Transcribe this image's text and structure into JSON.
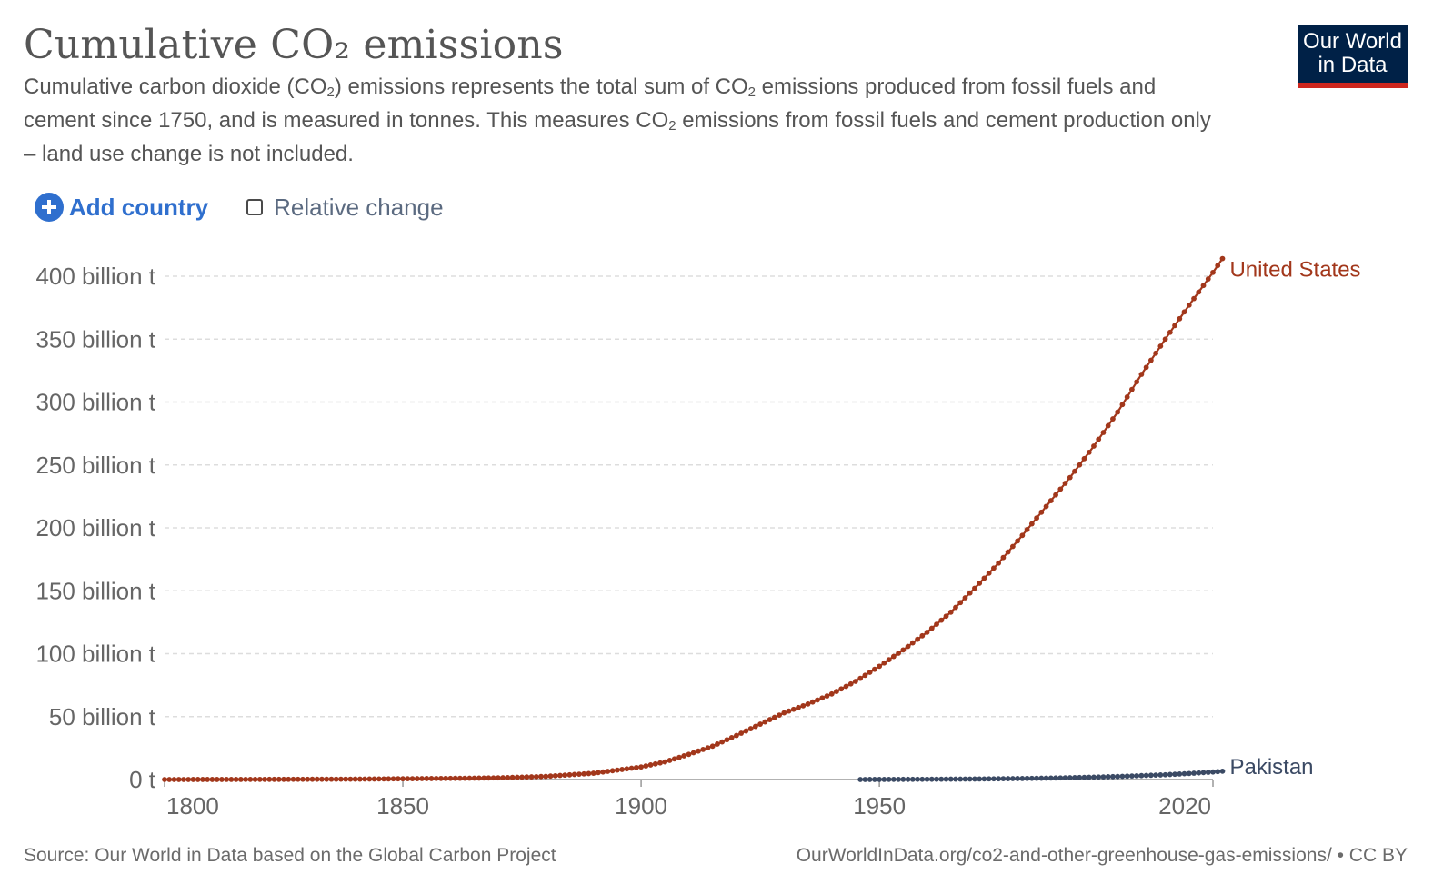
{
  "header": {
    "title": "Cumulative CO₂ emissions",
    "subtitle_parts": [
      "Cumulative carbon dioxide (CO",
      "2",
      ") emissions represents the total sum of CO",
      "2",
      " emissions produced from fossil fuels and cement since 1750, and is measured in tonnes. This measures CO",
      "2",
      " emissions from fossil fuels and cement production only – land use change is not included."
    ]
  },
  "logo": {
    "line1": "Our World",
    "line2": "in Data",
    "bg_color": "#002147",
    "accent_color": "#ce261e"
  },
  "controls": {
    "add_country_label": "Add country",
    "add_icon": "plus-circle-icon",
    "relative_change_label": "Relative change",
    "relative_change_checked": false
  },
  "chart_data": {
    "type": "line",
    "title": "Cumulative CO₂ emissions",
    "xlim": [
      1800,
      2020
    ],
    "ylim": [
      0,
      420
    ],
    "y_unit_note": "values in billion tonnes",
    "y_ticks": [
      {
        "value": 0,
        "label": "0 t"
      },
      {
        "value": 50,
        "label": "50 billion t"
      },
      {
        "value": 100,
        "label": "100 billion t"
      },
      {
        "value": 150,
        "label": "150 billion t"
      },
      {
        "value": 200,
        "label": "200 billion t"
      },
      {
        "value": 250,
        "label": "250 billion t"
      },
      {
        "value": 300,
        "label": "300 billion t"
      },
      {
        "value": 350,
        "label": "350 billion t"
      },
      {
        "value": 400,
        "label": "400 billion t"
      }
    ],
    "x_ticks": [
      {
        "value": 1800,
        "label": "1800"
      },
      {
        "value": 1850,
        "label": "1850"
      },
      {
        "value": 1900,
        "label": "1900"
      },
      {
        "value": 1950,
        "label": "1950"
      },
      {
        "value": 2020,
        "label": "2020"
      }
    ],
    "grid": "horizontal dashed",
    "legend": "labels at line ends (right)",
    "series": [
      {
        "name": "United States",
        "color": "#a2371b",
        "points": [
          [
            1800,
            0.0
          ],
          [
            1820,
            0.1
          ],
          [
            1840,
            0.3
          ],
          [
            1860,
            0.9
          ],
          [
            1870,
            1.3
          ],
          [
            1880,
            2.5
          ],
          [
            1890,
            5.0
          ],
          [
            1900,
            10.0
          ],
          [
            1905,
            14.0
          ],
          [
            1910,
            20.0
          ],
          [
            1915,
            26.5
          ],
          [
            1920,
            35.0
          ],
          [
            1925,
            44.0
          ],
          [
            1930,
            53.0
          ],
          [
            1935,
            60.0
          ],
          [
            1940,
            68.0
          ],
          [
            1945,
            78.0
          ],
          [
            1950,
            90.0
          ],
          [
            1955,
            103.0
          ],
          [
            1960,
            117.0
          ],
          [
            1965,
            133.0
          ],
          [
            1970,
            152.0
          ],
          [
            1975,
            172.0
          ],
          [
            1980,
            194.0
          ],
          [
            1985,
            217.0
          ],
          [
            1990,
            240.0
          ],
          [
            1995,
            265.0
          ],
          [
            2000,
            292.0
          ],
          [
            2005,
            322.0
          ],
          [
            2010,
            350.0
          ],
          [
            2015,
            377.0
          ],
          [
            2020,
            403.0
          ],
          [
            2022,
            414.0
          ]
        ]
      },
      {
        "name": "Pakistan",
        "color": "#3b4a64",
        "points": [
          [
            1946,
            0.0
          ],
          [
            1960,
            0.2
          ],
          [
            1970,
            0.4
          ],
          [
            1980,
            0.8
          ],
          [
            1990,
            1.4
          ],
          [
            2000,
            2.4
          ],
          [
            2010,
            3.8
          ],
          [
            2015,
            4.8
          ],
          [
            2020,
            6.0
          ],
          [
            2022,
            6.6
          ]
        ]
      }
    ]
  },
  "footer": {
    "source": "Source: Our World in Data based on the Global Carbon Project",
    "license": "OurWorldInData.org/co2-and-other-greenhouse-gas-emissions/ • CC BY"
  }
}
